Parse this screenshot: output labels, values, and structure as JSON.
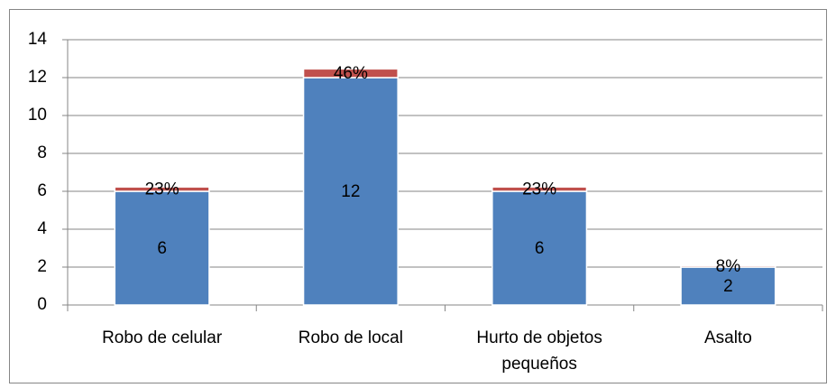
{
  "chart_data": {
    "type": "stacked-bar",
    "categories": [
      "Robo de celular",
      "Robo de local",
      "Hurto de objetos pequeños",
      "Asalto"
    ],
    "series": [
      {
        "color": "#4f81bd",
        "values": [
          6,
          12,
          6,
          2
        ]
      },
      {
        "color": "#c0504d",
        "values": [
          0.23,
          0.46,
          0.23,
          0.08
        ],
        "value_labels": [
          "23%",
          "46%",
          "23%",
          "8%"
        ]
      }
    ],
    "ylim": [
      0,
      14
    ],
    "yticks": [
      0,
      2,
      4,
      6,
      8,
      10,
      12,
      14
    ],
    "grid": true
  }
}
